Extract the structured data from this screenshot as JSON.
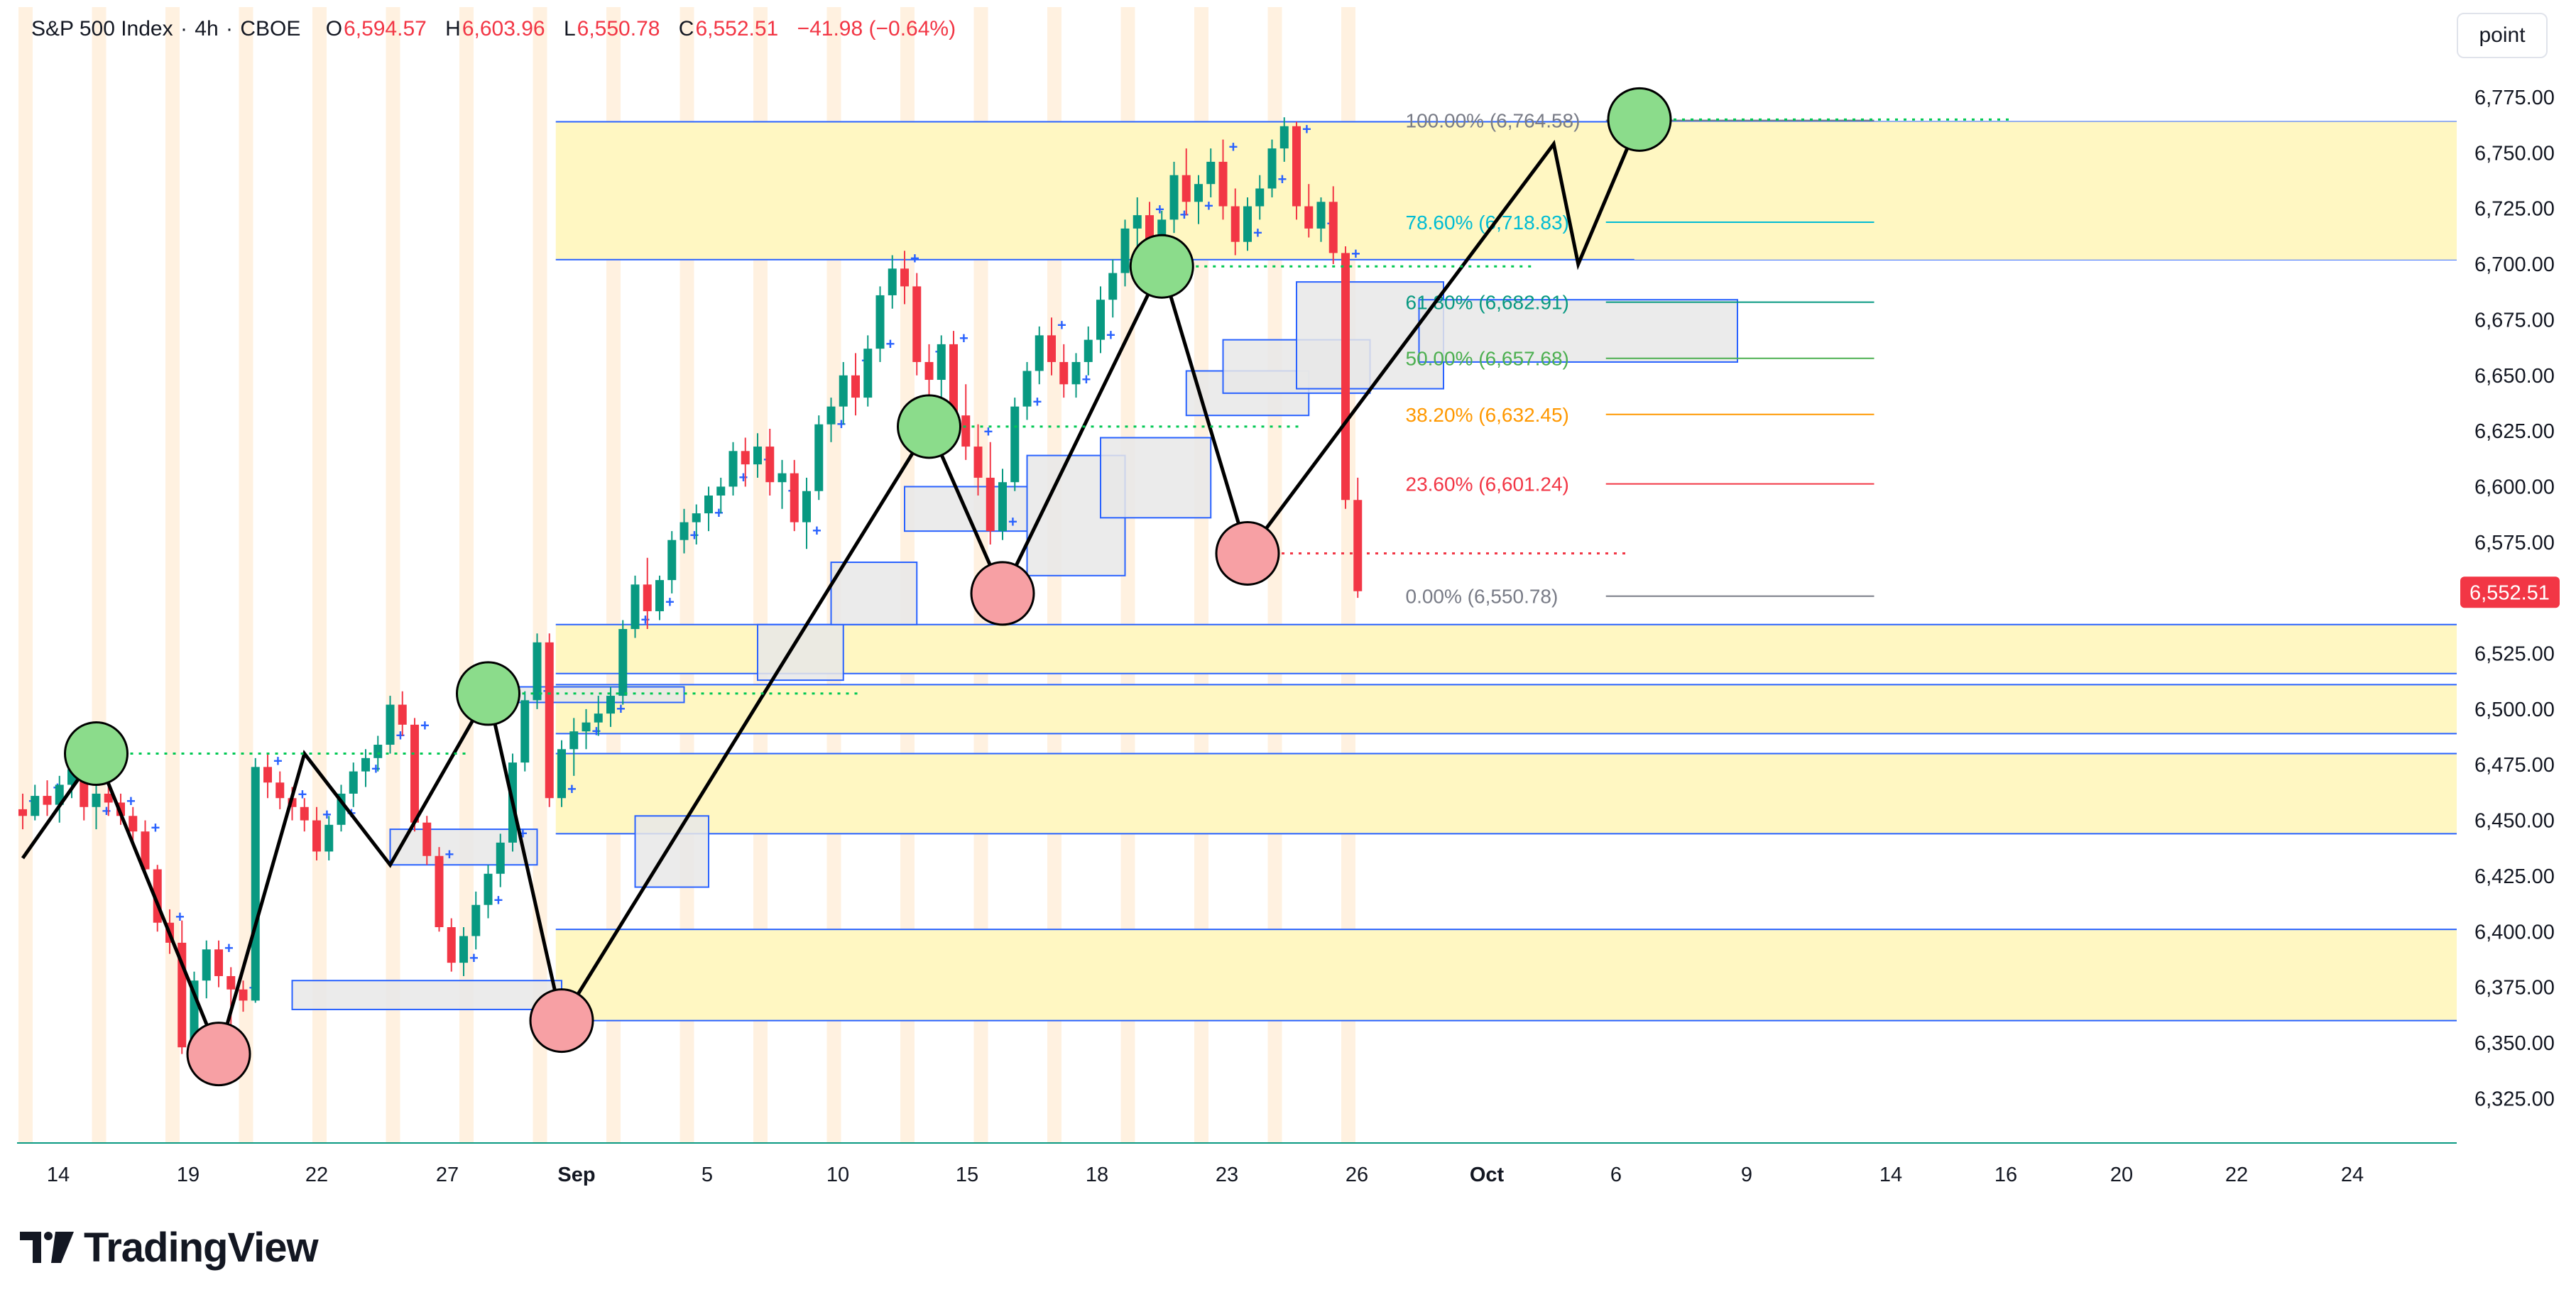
{
  "header": {
    "symbol": "S&P 500 Index",
    "interval": "4h",
    "exchange": "CBOE",
    "o_label": "O",
    "o_value": "6,594.57",
    "h_label": "H",
    "h_value": "6,603.96",
    "l_label": "L",
    "l_value": "6,550.78",
    "c_label": "C",
    "c_value": "6,552.51",
    "change": "−41.98 (−0.64%)"
  },
  "toolbar": {
    "unit_button": "point"
  },
  "brand": {
    "name": "TradingView"
  },
  "colors": {
    "up": "#089981",
    "down": "#f23645",
    "marker": "#2962ff",
    "zone_fill": "#fff7c2",
    "box_border": "#2962ff",
    "box_fill": "#e8e8e8",
    "zigzag": "#000000",
    "swing_high": "#8bdc8b",
    "swing_low": "#f7a0a4",
    "session": "#fff1e0"
  },
  "chart_data": {
    "type": "candlestick",
    "ylim": [
      6305,
      6790
    ],
    "y_ticks": [
      "6,325.00",
      "6,350.00",
      "6,375.00",
      "6,400.00",
      "6,425.00",
      "6,450.00",
      "6,475.00",
      "6,500.00",
      "6,525.00",
      "6,550.00",
      "6,575.00",
      "6,600.00",
      "6,625.00",
      "6,650.00",
      "6,675.00",
      "6,700.00",
      "6,725.00",
      "6,750.00",
      "6,775.00"
    ],
    "x_ticks": [
      "14",
      "19",
      "22",
      "27",
      "Sep",
      "5",
      "10",
      "15",
      "18",
      "23",
      "26",
      "Oct",
      "6",
      "9",
      "14",
      "16",
      "20",
      "22",
      "24"
    ],
    "last_price": "6,552.51",
    "candles": [
      [
        6455,
        6462,
        6446,
        6452
      ],
      [
        6452,
        6466,
        6450,
        6461
      ],
      [
        6461,
        6468,
        6452,
        6457
      ],
      [
        6457,
        6470,
        6449,
        6466
      ],
      [
        6466,
        6480,
        6460,
        6473
      ],
      [
        6473,
        6478,
        6450,
        6456
      ],
      [
        6456,
        6466,
        6446,
        6462
      ],
      [
        6462,
        6470,
        6452,
        6458
      ],
      [
        6458,
        6462,
        6448,
        6452
      ],
      [
        6452,
        6456,
        6440,
        6445
      ],
      [
        6445,
        6450,
        6425,
        6428
      ],
      [
        6428,
        6430,
        6400,
        6404
      ],
      [
        6404,
        6410,
        6390,
        6395
      ],
      [
        6395,
        6405,
        6345,
        6348
      ],
      [
        6348,
        6382,
        6345,
        6378
      ],
      [
        6378,
        6396,
        6370,
        6392
      ],
      [
        6392,
        6396,
        6375,
        6380
      ],
      [
        6380,
        6384,
        6352,
        6374
      ],
      [
        6374,
        6378,
        6364,
        6369
      ],
      [
        6369,
        6478,
        6368,
        6474
      ],
      [
        6474,
        6480,
        6460,
        6467
      ],
      [
        6467,
        6472,
        6455,
        6460
      ],
      [
        6460,
        6465,
        6450,
        6456
      ],
      [
        6456,
        6460,
        6445,
        6450
      ],
      [
        6450,
        6456,
        6432,
        6436
      ],
      [
        6436,
        6452,
        6432,
        6448
      ],
      [
        6448,
        6466,
        6445,
        6462
      ],
      [
        6462,
        6476,
        6456,
        6472
      ],
      [
        6472,
        6482,
        6465,
        6478
      ],
      [
        6478,
        6488,
        6472,
        6484
      ],
      [
        6484,
        6506,
        6480,
        6502
      ],
      [
        6502,
        6508,
        6488,
        6493
      ],
      [
        6493,
        6496,
        6445,
        6449
      ],
      [
        6449,
        6452,
        6430,
        6434
      ],
      [
        6434,
        6438,
        6400,
        6402
      ],
      [
        6402,
        6406,
        6382,
        6386
      ],
      [
        6386,
        6402,
        6380,
        6398
      ],
      [
        6398,
        6418,
        6392,
        6412
      ],
      [
        6412,
        6430,
        6406,
        6426
      ],
      [
        6426,
        6444,
        6420,
        6440
      ],
      [
        6440,
        6480,
        6436,
        6476
      ],
      [
        6476,
        6508,
        6472,
        6504
      ],
      [
        6504,
        6534,
        6500,
        6530
      ],
      [
        6530,
        6534,
        6456,
        6460
      ],
      [
        6460,
        6486,
        6456,
        6482
      ],
      [
        6482,
        6496,
        6470,
        6490
      ],
      [
        6490,
        6500,
        6482,
        6494
      ],
      [
        6494,
        6506,
        6488,
        6498
      ],
      [
        6498,
        6510,
        6492,
        6506
      ],
      [
        6506,
        6540,
        6502,
        6536
      ],
      [
        6536,
        6560,
        6532,
        6556
      ],
      [
        6556,
        6568,
        6536,
        6544
      ],
      [
        6544,
        6560,
        6540,
        6558
      ],
      [
        6558,
        6580,
        6552,
        6576
      ],
      [
        6576,
        6590,
        6570,
        6584
      ],
      [
        6584,
        6592,
        6574,
        6588
      ],
      [
        6588,
        6600,
        6580,
        6596
      ],
      [
        6596,
        6604,
        6588,
        6600
      ],
      [
        6600,
        6620,
        6596,
        6616
      ],
      [
        6616,
        6622,
        6600,
        6610
      ],
      [
        6610,
        6624,
        6604,
        6618
      ],
      [
        6618,
        6626,
        6596,
        6602
      ],
      [
        6602,
        6612,
        6590,
        6606
      ],
      [
        6606,
        6612,
        6580,
        6584
      ],
      [
        6584,
        6604,
        6572,
        6598
      ],
      [
        6598,
        6632,
        6594,
        6628
      ],
      [
        6628,
        6640,
        6620,
        6636
      ],
      [
        6636,
        6656,
        6628,
        6650
      ],
      [
        6650,
        6660,
        6632,
        6640
      ],
      [
        6640,
        6668,
        6636,
        6662
      ],
      [
        6662,
        6690,
        6656,
        6686
      ],
      [
        6686,
        6704,
        6680,
        6698
      ],
      [
        6698,
        6706,
        6682,
        6690
      ],
      [
        6690,
        6696,
        6650,
        6656
      ],
      [
        6656,
        6664,
        6640,
        6648
      ],
      [
        6648,
        6668,
        6640,
        6664
      ],
      [
        6664,
        6670,
        6626,
        6632
      ],
      [
        6632,
        6646,
        6612,
        6618
      ],
      [
        6618,
        6628,
        6596,
        6604
      ],
      [
        6604,
        6620,
        6574,
        6580
      ],
      [
        6580,
        6608,
        6576,
        6602
      ],
      [
        6602,
        6640,
        6598,
        6636
      ],
      [
        6636,
        6656,
        6630,
        6652
      ],
      [
        6652,
        6672,
        6646,
        6668
      ],
      [
        6668,
        6676,
        6650,
        6656
      ],
      [
        6656,
        6664,
        6640,
        6646
      ],
      [
        6646,
        6660,
        6640,
        6656
      ],
      [
        6656,
        6672,
        6650,
        6666
      ],
      [
        6666,
        6690,
        6660,
        6684
      ],
      [
        6684,
        6702,
        6676,
        6696
      ],
      [
        6696,
        6720,
        6690,
        6716
      ],
      [
        6716,
        6730,
        6706,
        6722
      ],
      [
        6722,
        6728,
        6696,
        6704
      ],
      [
        6704,
        6724,
        6700,
        6720
      ],
      [
        6720,
        6746,
        6714,
        6740
      ],
      [
        6740,
        6752,
        6722,
        6728
      ],
      [
        6728,
        6740,
        6718,
        6736
      ],
      [
        6736,
        6752,
        6730,
        6746
      ],
      [
        6746,
        6756,
        6720,
        6726
      ],
      [
        6726,
        6734,
        6704,
        6710
      ],
      [
        6710,
        6730,
        6706,
        6726
      ],
      [
        6726,
        6740,
        6720,
        6734
      ],
      [
        6734,
        6756,
        6730,
        6752
      ],
      [
        6752,
        6766,
        6746,
        6762
      ],
      [
        6762,
        6764,
        6720,
        6726
      ],
      [
        6726,
        6736,
        6712,
        6716
      ],
      [
        6716,
        6730,
        6710,
        6728
      ],
      [
        6728,
        6735,
        6700,
        6705
      ],
      [
        6705,
        6708,
        6590,
        6594
      ],
      [
        6594,
        6604,
        6550,
        6553
      ]
    ],
    "demand_zones": [
      [
        6360,
        6401
      ],
      [
        6444,
        6480
      ],
      [
        6489,
        6511
      ],
      [
        6516,
        6538
      ],
      [
        6702,
        6764
      ]
    ],
    "retracement_box_zone": [
      6702,
      6764
    ],
    "fib_levels": [
      {
        "label": "100.00% (6,764.58)",
        "value": 6764.58,
        "color": "#787b86"
      },
      {
        "label": "78.60% (6,718.83)",
        "value": 6718.83,
        "color": "#00bcd4"
      },
      {
        "label": "61.80% (6,682.91)",
        "value": 6682.91,
        "color": "#089981"
      },
      {
        "label": "50.00% (6,657.68)",
        "value": 6657.68,
        "color": "#4caf50"
      },
      {
        "label": "38.20% (6,632.45)",
        "value": 6632.45,
        "color": "#ff9800"
      },
      {
        "label": "23.60% (6,601.24)",
        "value": 6601.24,
        "color": "#f23645"
      },
      {
        "label": "0.00% (6,550.78)",
        "value": 6550.78,
        "color": "#787b86"
      }
    ],
    "swing_highs": [
      [
        6,
        6480
      ],
      [
        38,
        6507
      ],
      [
        74,
        6627
      ],
      [
        93,
        6699
      ],
      [
        132,
        6765
      ]
    ],
    "swing_lows": [
      [
        16,
        6345
      ],
      [
        44,
        6360
      ],
      [
        80,
        6552
      ],
      [
        100,
        6570
      ]
    ],
    "zigzag": [
      [
        0,
        6433
      ],
      [
        6,
        6480
      ],
      [
        16,
        6345
      ],
      [
        23,
        6480
      ],
      [
        30,
        6430
      ],
      [
        38,
        6507
      ],
      [
        44,
        6360
      ],
      [
        74,
        6627
      ],
      [
        80,
        6552
      ],
      [
        93,
        6699
      ],
      [
        100,
        6570
      ],
      [
        125,
        6754
      ],
      [
        127,
        6700
      ],
      [
        132,
        6765
      ]
    ],
    "order_blocks": [
      [
        22,
        44,
        6365,
        6378
      ],
      [
        30,
        42,
        6430,
        6446
      ],
      [
        38,
        54,
        6503,
        6510
      ],
      [
        50,
        56,
        6420,
        6452
      ],
      [
        60,
        67,
        6513,
        6538
      ],
      [
        66,
        73,
        6538,
        6566
      ],
      [
        72,
        82,
        6580,
        6600
      ],
      [
        82,
        90,
        6560,
        6614
      ],
      [
        88,
        97,
        6586,
        6622
      ],
      [
        95,
        105,
        6632,
        6652
      ],
      [
        98,
        110,
        6642,
        6666
      ],
      [
        104,
        116,
        6644,
        6692
      ],
      [
        114,
        140,
        6656,
        6684
      ]
    ]
  }
}
